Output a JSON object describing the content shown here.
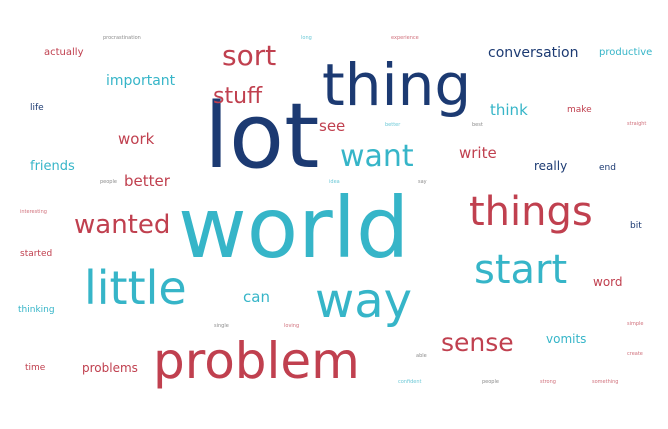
{
  "colors": {
    "navy": "#1c3a72",
    "red": "#c0404f",
    "teal": "#36b5c8",
    "gray": "#8c8c8c"
  },
  "words": [
    "lot",
    "thing",
    "world",
    "problem",
    "little",
    "way",
    "things",
    "start",
    "sort",
    "want",
    "wanted",
    "sense",
    "stuff",
    "conversation",
    "important",
    "work",
    "better",
    "friends",
    "see",
    "write",
    "think",
    "really",
    "productive",
    "actually",
    "can",
    "problems",
    "vomits",
    "word",
    "started",
    "thinking",
    "time",
    "life",
    "make",
    "end",
    "bit",
    "procrastination",
    "long",
    "experience",
    "interesting",
    "people",
    "strong",
    "something",
    "confident",
    "able",
    "single",
    "loving",
    "idea",
    "say",
    "straight",
    "best",
    "better",
    "simple",
    "create",
    "people"
  ]
}
